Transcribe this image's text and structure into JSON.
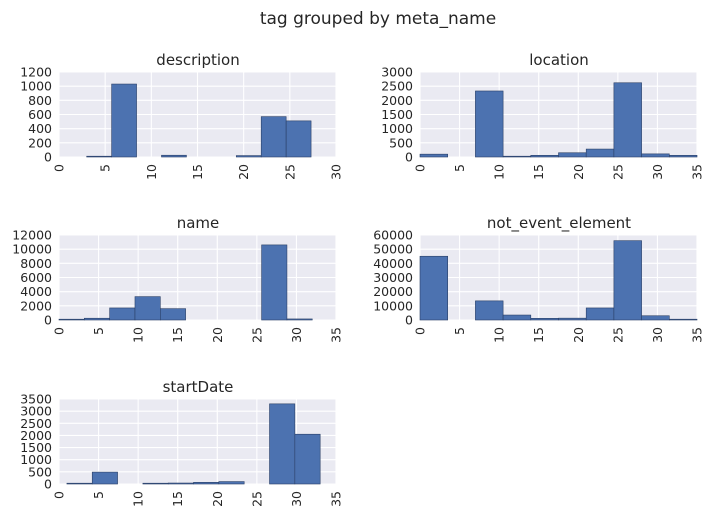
{
  "figure": {
    "title": "tag grouped by meta_name"
  },
  "chart_data": [
    {
      "type": "bar",
      "title": "description",
      "xlim": [
        0,
        30
      ],
      "ylim": [
        0,
        1200
      ],
      "xticks": [
        0,
        5,
        10,
        15,
        20,
        25,
        30
      ],
      "yticks": [
        0,
        200,
        400,
        600,
        800,
        1000,
        1200
      ],
      "bins": [
        {
          "x0": 3.0,
          "x1": 5.7,
          "value": 5
        },
        {
          "x0": 5.7,
          "x1": 8.4,
          "value": 1030
        },
        {
          "x0": 8.4,
          "x1": 11.1,
          "value": 0
        },
        {
          "x0": 11.1,
          "x1": 13.8,
          "value": 25
        },
        {
          "x0": 13.8,
          "x1": 16.5,
          "value": 0
        },
        {
          "x0": 16.5,
          "x1": 19.2,
          "value": 0
        },
        {
          "x0": 19.2,
          "x1": 21.9,
          "value": 20
        },
        {
          "x0": 21.9,
          "x1": 24.6,
          "value": 570
        },
        {
          "x0": 24.6,
          "x1": 27.3,
          "value": 510
        }
      ]
    },
    {
      "type": "bar",
      "title": "location",
      "xlim": [
        0,
        35
      ],
      "ylim": [
        0,
        3000
      ],
      "xticks": [
        0,
        5,
        10,
        15,
        20,
        25,
        30,
        35
      ],
      "yticks": [
        0,
        500,
        1000,
        1500,
        2000,
        2500,
        3000
      ],
      "bins": [
        {
          "x0": 0.0,
          "x1": 3.5,
          "value": 100
        },
        {
          "x0": 3.5,
          "x1": 7.0,
          "value": 0
        },
        {
          "x0": 7.0,
          "x1": 10.5,
          "value": 2330
        },
        {
          "x0": 10.5,
          "x1": 14.0,
          "value": 20
        },
        {
          "x0": 14.0,
          "x1": 17.5,
          "value": 60
        },
        {
          "x0": 17.5,
          "x1": 21.0,
          "value": 150
        },
        {
          "x0": 21.0,
          "x1": 24.5,
          "value": 280
        },
        {
          "x0": 24.5,
          "x1": 28.0,
          "value": 2620
        },
        {
          "x0": 28.0,
          "x1": 31.5,
          "value": 110
        },
        {
          "x0": 31.5,
          "x1": 35.0,
          "value": 60
        }
      ]
    },
    {
      "type": "bar",
      "title": "name",
      "xlim": [
        0,
        35
      ],
      "ylim": [
        0,
        12000
      ],
      "xticks": [
        0,
        5,
        10,
        15,
        20,
        25,
        30,
        35
      ],
      "yticks": [
        0,
        2000,
        4000,
        6000,
        8000,
        10000,
        12000
      ],
      "bins": [
        {
          "x0": 0.0,
          "x1": 3.2,
          "value": 100
        },
        {
          "x0": 3.2,
          "x1": 6.4,
          "value": 250
        },
        {
          "x0": 6.4,
          "x1": 9.6,
          "value": 1700
        },
        {
          "x0": 9.6,
          "x1": 12.8,
          "value": 3300
        },
        {
          "x0": 12.8,
          "x1": 16.0,
          "value": 1600
        },
        {
          "x0": 16.0,
          "x1": 19.2,
          "value": 0
        },
        {
          "x0": 19.2,
          "x1": 22.4,
          "value": 0
        },
        {
          "x0": 22.4,
          "x1": 25.6,
          "value": 0
        },
        {
          "x0": 25.6,
          "x1": 28.8,
          "value": 10600
        },
        {
          "x0": 28.8,
          "x1": 32.0,
          "value": 150
        }
      ]
    },
    {
      "type": "bar",
      "title": "not_event_element",
      "xlim": [
        0,
        35
      ],
      "ylim": [
        0,
        60000
      ],
      "xticks": [
        0,
        5,
        10,
        15,
        20,
        25,
        30,
        35
      ],
      "yticks": [
        0,
        10000,
        20000,
        30000,
        40000,
        50000,
        60000
      ],
      "bins": [
        {
          "x0": 0.0,
          "x1": 3.5,
          "value": 45000
        },
        {
          "x0": 3.5,
          "x1": 7.0,
          "value": 0
        },
        {
          "x0": 7.0,
          "x1": 10.5,
          "value": 13500
        },
        {
          "x0": 10.5,
          "x1": 14.0,
          "value": 3500
        },
        {
          "x0": 14.0,
          "x1": 17.5,
          "value": 1200
        },
        {
          "x0": 17.5,
          "x1": 21.0,
          "value": 1300
        },
        {
          "x0": 21.0,
          "x1": 24.5,
          "value": 8500
        },
        {
          "x0": 24.5,
          "x1": 28.0,
          "value": 56000
        },
        {
          "x0": 28.0,
          "x1": 31.5,
          "value": 3000
        },
        {
          "x0": 31.5,
          "x1": 35.0,
          "value": 500
        }
      ]
    },
    {
      "type": "bar",
      "title": "startDate",
      "xlim": [
        0,
        35
      ],
      "ylim": [
        0,
        3500
      ],
      "xticks": [
        0,
        5,
        10,
        15,
        20,
        25,
        30,
        35
      ],
      "yticks": [
        0,
        500,
        1000,
        1500,
        2000,
        2500,
        3000,
        3500
      ],
      "bins": [
        {
          "x0": 1.0,
          "x1": 4.2,
          "value": 20
        },
        {
          "x0": 4.2,
          "x1": 7.4,
          "value": 490
        },
        {
          "x0": 7.4,
          "x1": 10.6,
          "value": 0
        },
        {
          "x0": 10.6,
          "x1": 13.8,
          "value": 30
        },
        {
          "x0": 13.8,
          "x1": 17.0,
          "value": 40
        },
        {
          "x0": 17.0,
          "x1": 20.2,
          "value": 70
        },
        {
          "x0": 20.2,
          "x1": 23.4,
          "value": 100
        },
        {
          "x0": 23.4,
          "x1": 26.6,
          "value": 0
        },
        {
          "x0": 26.6,
          "x1": 29.8,
          "value": 3300
        },
        {
          "x0": 29.8,
          "x1": 33.0,
          "value": 2050
        }
      ]
    }
  ]
}
